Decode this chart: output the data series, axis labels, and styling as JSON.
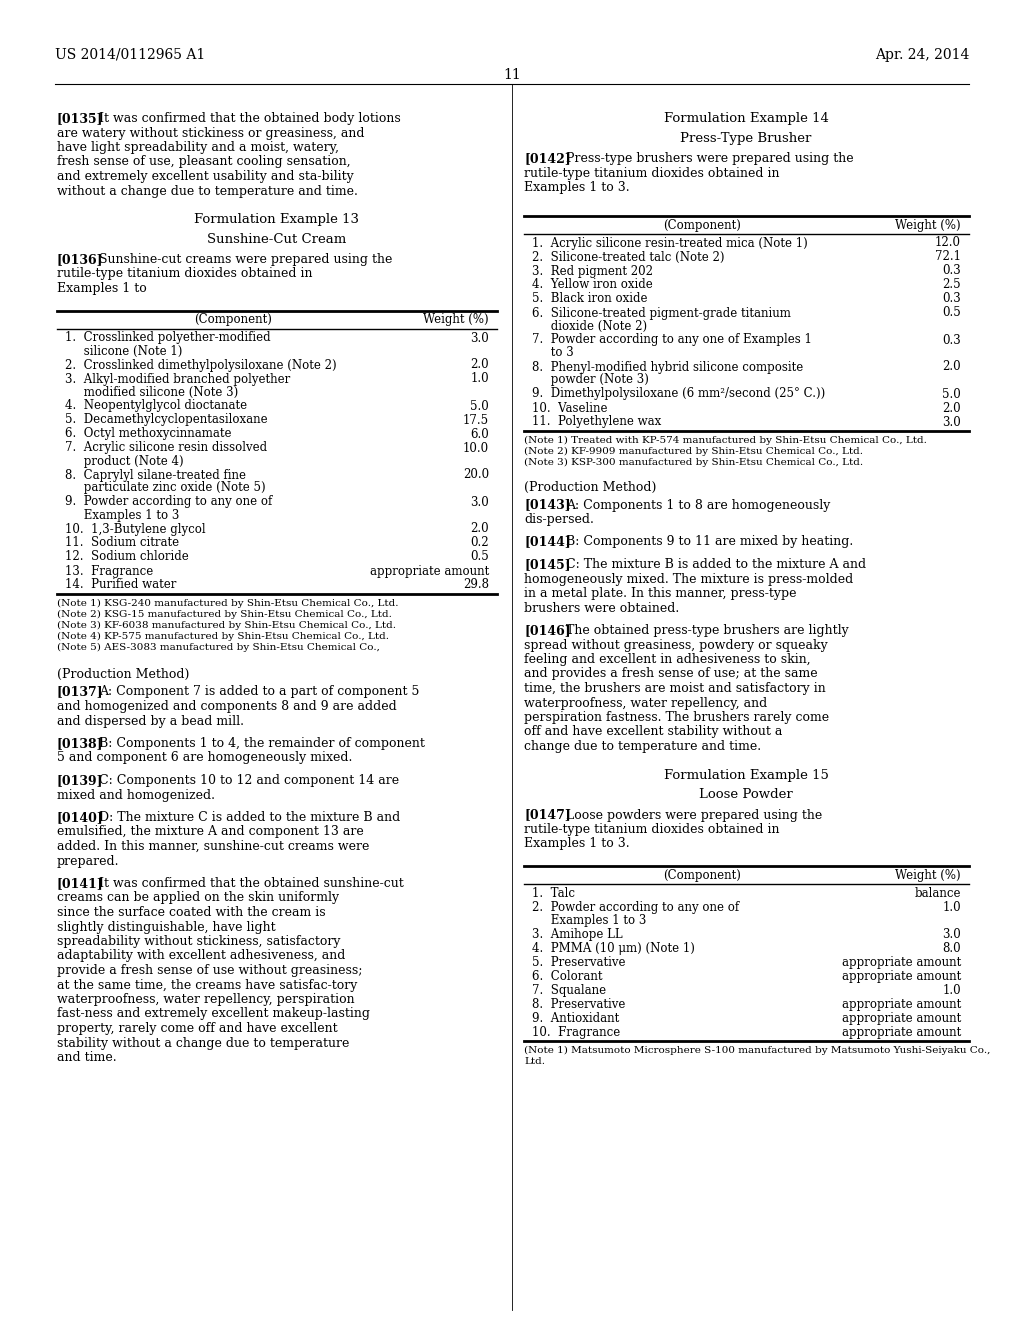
{
  "background_color": "#ffffff",
  "header_left": "US 2014/0112965 A1",
  "header_right": "Apr. 24, 2014",
  "page_number": "11",
  "left_column": {
    "para_135_tag": "[0135]",
    "para_135_text": "It was confirmed that the obtained body lotions are watery without stickiness or greasiness, and have light spreadability and a moist, watery, fresh sense of use, pleasant cooling sensation, and extremely excellent usability and sta-bility without a change due to temperature and time.",
    "form_ex13_title": "Formulation Example 13",
    "form_ex13_subtitle": "Sunshine-Cut Cream",
    "para_136_tag": "[0136]",
    "para_136_text": "Sunshine-cut creams were prepared using the rutile-type titanium dioxides obtained in Examples 1 to",
    "table13_headers": [
      "(Component)",
      "Weight (%)"
    ],
    "table13_rows": [
      [
        "1.  Crosslinked polyether-modified\n     silicone (Note 1)",
        "3.0"
      ],
      [
        "2.  Crosslinked dimethylpolysiloxane (Note 2)",
        "2.0"
      ],
      [
        "3.  Alkyl-modified branched polyether\n     modified silicone (Note 3)",
        "1.0"
      ],
      [
        "4.  Neopentylglycol dioctanate",
        "5.0"
      ],
      [
        "5.  Decamethylcyclopentasiloxane",
        "17.5"
      ],
      [
        "6.  Octyl methoxycinnamate",
        "6.0"
      ],
      [
        "7.  Acrylic silicone resin dissolved\n     product (Note 4)",
        "10.0"
      ],
      [
        "8.  Caprylyl silane-treated fine\n     particulate zinc oxide (Note 5)",
        "20.0"
      ],
      [
        "9.  Powder according to any one of\n     Examples 1 to 3",
        "3.0"
      ],
      [
        "10.  1,3-Butylene glycol",
        "2.0"
      ],
      [
        "11.  Sodium citrate",
        "0.2"
      ],
      [
        "12.  Sodium chloride",
        "0.5"
      ],
      [
        "13.  Fragrance",
        "appropriate amount"
      ],
      [
        "14.  Purified water",
        "29.8"
      ]
    ],
    "table13_notes": [
      "(Note 1) KSG-240 manufactured by Shin-Etsu Chemical Co., Ltd.",
      "(Note 2) KSG-15 manufactured by Shin-Etsu Chemical Co., Ltd.",
      "(Note 3) KF-6038 manufactured by Shin-Etsu Chemical Co., Ltd.",
      "(Note 4) KP-575 manufactured by Shin-Etsu Chemical Co., Ltd.",
      "(Note 5) AES-3083 manufactured by Shin-Etsu Chemical Co.,"
    ],
    "prod_method13_title": "(Production Method)",
    "para_137_tag": "[0137]",
    "para_137_text": "A: Component 7 is added to a part of component 5 and homogenized and components 8 and 9 are added and dispersed by a bead mill.",
    "para_138_tag": "[0138]",
    "para_138_text": "B: Components 1 to 4, the remainder of component 5 and component 6 are homogeneously mixed.",
    "para_139_tag": "[0139]",
    "para_139_text": "C: Components 10 to 12 and component 14 are mixed and homogenized.",
    "para_140_tag": "[0140]",
    "para_140_text": "D: The mixture C is added to the mixture B and emulsified, the mixture A and component 13 are added. In this manner, sunshine-cut creams were prepared.",
    "para_141_tag": "[0141]",
    "para_141_text": "It was confirmed that the obtained sunshine-cut creams can be applied on the skin uniformly since the surface coated with the cream is slightly distinguishable, have light spreadability without stickiness, satisfactory adaptability with excellent adhesiveness, and provide a fresh sense of use without greasiness; at the same time, the creams have satisfac-tory waterproofness, water repellency, perspiration fast-ness and extremely excellent makeup-lasting property, rarely come off and have excellent stability without a change due to temperature and time."
  },
  "right_column": {
    "form_ex14_title": "Formulation Example 14",
    "form_ex14_subtitle": "Press-Type Brusher",
    "para_142_tag": "[0142]",
    "para_142_text": "Press-type brushers were prepared using the rutile-type titanium dioxides obtained in Examples 1 to 3.",
    "table14_headers": [
      "(Component)",
      "Weight (%)"
    ],
    "table14_rows": [
      [
        "1.  Acrylic silicone resin-treated mica (Note 1)",
        "12.0"
      ],
      [
        "2.  Silicone-treated talc (Note 2)",
        "72.1"
      ],
      [
        "3.  Red pigment 202",
        "0.3"
      ],
      [
        "4.  Yellow iron oxide",
        "2.5"
      ],
      [
        "5.  Black iron oxide",
        "0.3"
      ],
      [
        "6.  Silicone-treated pigment-grade titanium\n     dioxide (Note 2)",
        "0.5"
      ],
      [
        "7.  Powder according to any one of Examples 1\n     to 3",
        "0.3"
      ],
      [
        "8.  Phenyl-modified hybrid silicone composite\n     powder (Note 3)",
        "2.0"
      ],
      [
        "9.  Dimethylpolysiloxane (6 mm²/second (25° C.))",
        "5.0"
      ],
      [
        "10.  Vaseline",
        "2.0"
      ],
      [
        "11.  Polyethylene wax",
        "3.0"
      ]
    ],
    "table14_notes": [
      "(Note 1) Treated with KP-574 manufactured by Shin-Etsu Chemical Co., Ltd.",
      "(Note 2) KF-9909 manufactured by Shin-Etsu Chemical Co., Ltd.",
      "(Note 3) KSP-300 manufactured by Shin-Etsu Chemical Co., Ltd."
    ],
    "prod_method14_title": "(Production Method)",
    "para_143_tag": "[0143]",
    "para_143_text": "A: Components 1 to 8 are homogeneously dis-persed.",
    "para_144_tag": "[0144]",
    "para_144_text": "B: Components 9 to 11 are mixed by heating.",
    "para_145_tag": "[0145]",
    "para_145_text": "C: The mixture B is added to the mixture A and homogeneously mixed. The mixture is press-molded in a metal plate. In this manner, press-type brushers were obtained.",
    "para_146_tag": "[0146]",
    "para_146_text": "The obtained press-type brushers are lightly spread without greasiness, powdery or squeaky feeling and excellent in adhesiveness to skin, and provides a fresh sense of use; at the same time, the brushers are moist and satisfactory in waterproofness, water repellency, and perspiration fastness. The brushers rarely come off and have excellent stability without a change due to temperature and time.",
    "form_ex15_title": "Formulation Example 15",
    "form_ex15_subtitle": "Loose Powder",
    "para_147_tag": "[0147]",
    "para_147_text": "Loose powders were prepared using the rutile-type titanium dioxides obtained in Examples 1 to 3.",
    "table15_headers": [
      "(Component)",
      "Weight (%)"
    ],
    "table15_rows": [
      [
        "1.  Talc",
        "balance"
      ],
      [
        "2.  Powder according to any one of\n     Examples 1 to 3",
        "1.0"
      ],
      [
        "3.  Amihope LL",
        "3.0"
      ],
      [
        "4.  PMMA (10 μm) (Note 1)",
        "8.0"
      ],
      [
        "5.  Preservative",
        "appropriate amount"
      ],
      [
        "6.  Colorant",
        "appropriate amount"
      ],
      [
        "7.  Squalane",
        "1.0"
      ],
      [
        "8.  Preservative",
        "appropriate amount"
      ],
      [
        "9.  Antioxidant",
        "appropriate amount"
      ],
      [
        "10.  Fragrance",
        "appropriate amount"
      ]
    ],
    "table15_notes": [
      "(Note 1) Matsumoto Microsphere S-100 manufactured by Matsumoto Yushi-Seiyaku Co.,",
      "Ltd."
    ]
  }
}
